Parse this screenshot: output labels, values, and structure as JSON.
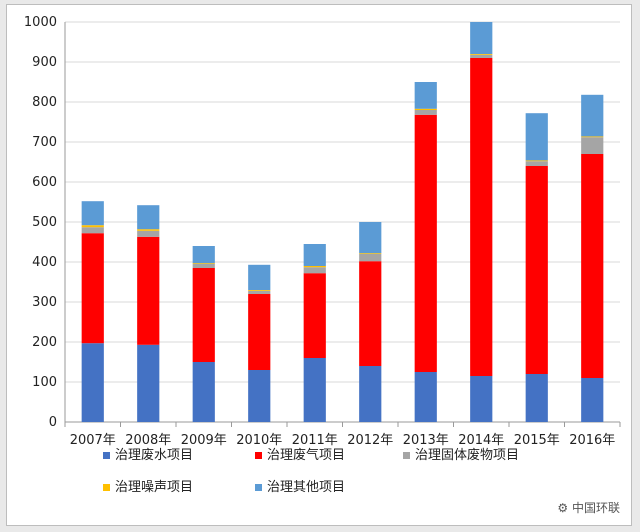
{
  "watermark": "中国环联",
  "chart_data": {
    "type": "bar",
    "stacked": true,
    "categories": [
      "2007年",
      "2008年",
      "2009年",
      "2010年",
      "2011年",
      "2012年",
      "2013年",
      "2014年",
      "2015年",
      "2016年"
    ],
    "ylim": [
      0,
      1000
    ],
    "yticks": [
      0,
      100,
      200,
      300,
      400,
      500,
      600,
      700,
      800,
      900,
      1000
    ],
    "grid": true,
    "legend_position": "bottom",
    "series": [
      {
        "name": "治理废水项目",
        "color": "#4472c4",
        "values": [
          197,
          193,
          150,
          130,
          160,
          140,
          125,
          115,
          120,
          110
        ]
      },
      {
        "name": "治理废气项目",
        "color": "#ff0000",
        "values": [
          275,
          270,
          235,
          190,
          212,
          262,
          643,
          795,
          520,
          560
        ]
      },
      {
        "name": "治理固体废物项目",
        "color": "#a5a5a5",
        "values": [
          15,
          15,
          10,
          8,
          15,
          18,
          12,
          8,
          12,
          42
        ]
      },
      {
        "name": "治理噪声项目",
        "color": "#ffc000",
        "values": [
          5,
          4,
          2,
          2,
          3,
          2,
          3,
          2,
          2,
          2
        ]
      },
      {
        "name": "治理其他项目",
        "color": "#5b9bd5",
        "values": [
          60,
          60,
          43,
          63,
          55,
          78,
          67,
          80,
          118,
          104
        ]
      }
    ]
  }
}
